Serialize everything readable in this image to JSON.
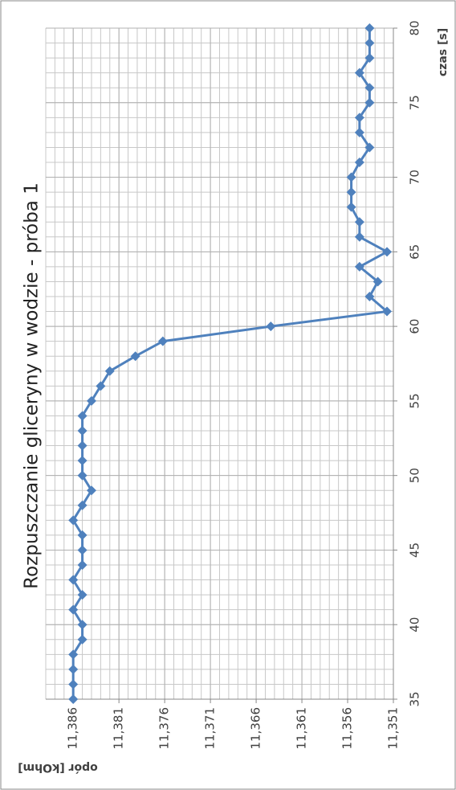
{
  "chart_data": {
    "type": "line",
    "title": "Rozpuszczanie gliceryny w wodzie - próba 1",
    "x_label": "czas [s]",
    "y_label": "opór [kOhm]",
    "x": [
      35,
      36,
      37,
      38,
      39,
      40,
      41,
      42,
      43,
      44,
      45,
      46,
      47,
      48,
      49,
      50,
      51,
      52,
      53,
      54,
      55,
      56,
      57,
      58,
      59,
      60,
      61,
      62,
      63,
      64,
      65,
      66,
      67,
      68,
      69,
      70,
      71,
      72,
      73,
      74,
      75,
      76,
      77,
      78,
      79,
      80
    ],
    "series": [
      {
        "name": "opór",
        "color": "#4f81bd",
        "values": [
          11.386,
          11.386,
          11.386,
          11.386,
          11.385,
          11.385,
          11.386,
          11.385,
          11.386,
          11.385,
          11.385,
          11.385,
          11.386,
          11.385,
          11.384,
          11.385,
          11.385,
          11.385,
          11.385,
          11.385,
          11.384,
          11.383,
          11.382,
          11.3792,
          11.3762,
          11.3644,
          11.3517,
          11.3536,
          11.3527,
          11.3547,
          11.3517,
          11.3547,
          11.3547,
          11.3556,
          11.3556,
          11.3556,
          11.3547,
          11.3536,
          11.3547,
          11.3547,
          11.3536,
          11.3536,
          11.3547,
          11.3536,
          11.3536,
          11.3536
        ]
      }
    ],
    "xlim": [
      35,
      80
    ],
    "xticks": [
      35,
      40,
      45,
      50,
      55,
      60,
      65,
      70,
      75,
      80
    ],
    "ylim": [
      11.351,
      11.389
    ],
    "yticks": [
      {
        "value": 11.351,
        "label": "11,351"
      },
      {
        "value": 11.356,
        "label": "11,356"
      },
      {
        "value": 11.361,
        "label": "11,361"
      },
      {
        "value": 11.366,
        "label": "11,366"
      },
      {
        "value": 11.371,
        "label": "11,371"
      },
      {
        "value": 11.376,
        "label": "11,376"
      },
      {
        "value": 11.381,
        "label": "11,381"
      },
      {
        "value": 11.386,
        "label": "11,386"
      }
    ],
    "grid": true
  }
}
